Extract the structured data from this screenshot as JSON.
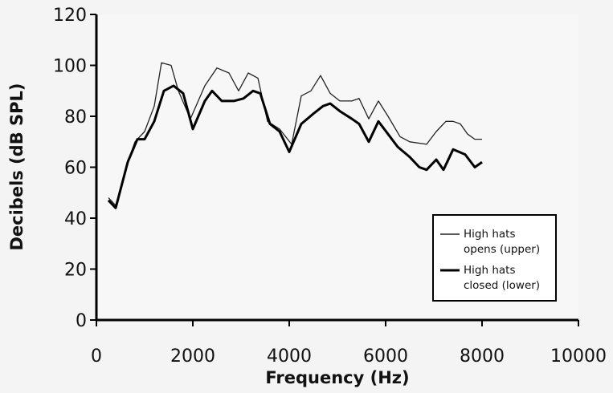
{
  "chart_data": {
    "type": "line",
    "xlabel": "Frequency (Hz)",
    "ylabel": "Decibels (dB SPL)",
    "xlim": [
      0,
      10000
    ],
    "ylim": [
      0,
      120
    ],
    "x_ticks": [
      0,
      2000,
      4000,
      6000,
      8000,
      10000
    ],
    "y_ticks": [
      0,
      20,
      40,
      60,
      80,
      100,
      120
    ],
    "grid": false,
    "legend_position": "bottom-right",
    "series": [
      {
        "legend_lines": [
          "High hats",
          "opens (upper)"
        ],
        "line_weight": "thin",
        "color": "#222222",
        "points": [
          [
            250,
            48
          ],
          [
            400,
            45
          ],
          [
            650,
            62
          ],
          [
            800,
            70
          ],
          [
            1000,
            74
          ],
          [
            1200,
            84
          ],
          [
            1350,
            101
          ],
          [
            1550,
            100
          ],
          [
            1700,
            90
          ],
          [
            1950,
            79
          ],
          [
            2250,
            92
          ],
          [
            2500,
            99
          ],
          [
            2750,
            97
          ],
          [
            2950,
            90
          ],
          [
            3150,
            97
          ],
          [
            3350,
            95
          ],
          [
            3550,
            78
          ],
          [
            3800,
            75
          ],
          [
            4050,
            69
          ],
          [
            4250,
            88
          ],
          [
            4450,
            90
          ],
          [
            4650,
            96
          ],
          [
            4850,
            89
          ],
          [
            5050,
            86
          ],
          [
            5300,
            86
          ],
          [
            5450,
            87
          ],
          [
            5650,
            79
          ],
          [
            5850,
            86
          ],
          [
            6050,
            80
          ],
          [
            6300,
            72
          ],
          [
            6500,
            70
          ],
          [
            6850,
            69
          ],
          [
            7050,
            74
          ],
          [
            7250,
            78
          ],
          [
            7400,
            78
          ],
          [
            7550,
            77
          ],
          [
            7700,
            73
          ],
          [
            7850,
            71
          ],
          [
            8000,
            71
          ]
        ]
      },
      {
        "legend_lines": [
          "High hats",
          "closed (lower)"
        ],
        "line_weight": "thick",
        "color": "#000000",
        "points": [
          [
            250,
            47
          ],
          [
            400,
            44
          ],
          [
            650,
            62
          ],
          [
            850,
            71
          ],
          [
            1000,
            71
          ],
          [
            1200,
            78
          ],
          [
            1400,
            90
          ],
          [
            1600,
            92
          ],
          [
            1800,
            89
          ],
          [
            2000,
            75
          ],
          [
            2250,
            86
          ],
          [
            2400,
            90
          ],
          [
            2600,
            86
          ],
          [
            2850,
            86
          ],
          [
            3050,
            87
          ],
          [
            3250,
            90
          ],
          [
            3400,
            89
          ],
          [
            3600,
            77
          ],
          [
            3800,
            74
          ],
          [
            4000,
            66
          ],
          [
            4250,
            77
          ],
          [
            4500,
            81
          ],
          [
            4700,
            84
          ],
          [
            4850,
            85
          ],
          [
            5050,
            82
          ],
          [
            5300,
            79
          ],
          [
            5450,
            77
          ],
          [
            5650,
            70
          ],
          [
            5850,
            78
          ],
          [
            6050,
            73
          ],
          [
            6250,
            68
          ],
          [
            6500,
            64
          ],
          [
            6700,
            60
          ],
          [
            6850,
            59
          ],
          [
            7050,
            63
          ],
          [
            7200,
            59
          ],
          [
            7400,
            67
          ],
          [
            7650,
            65
          ],
          [
            7850,
            60
          ],
          [
            8000,
            62
          ]
        ]
      }
    ]
  }
}
